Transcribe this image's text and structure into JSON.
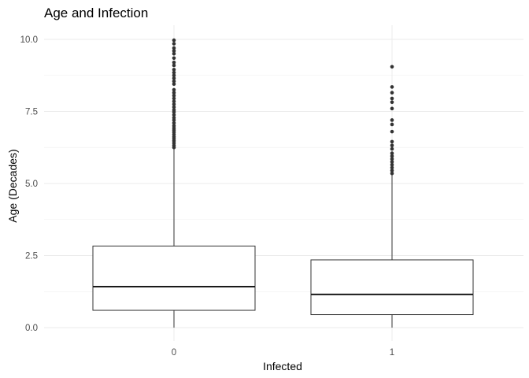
{
  "chart_data": {
    "type": "box",
    "title": "Age and Infection",
    "xlabel": "Infected",
    "ylabel": "Age (Decades)",
    "ylim": [
      -0.05,
      10.2
    ],
    "y_ticks": [
      0.0,
      2.5,
      5.0,
      7.5,
      10.0
    ],
    "y_tick_labels": [
      "0.0",
      "2.5",
      "5.0",
      "7.5",
      "10.0"
    ],
    "grid": true,
    "categories": [
      "0",
      "1"
    ],
    "boxes": [
      {
        "category": "0",
        "whisker_low": 0.0,
        "q1": 0.6,
        "median": 1.42,
        "q3": 2.83,
        "whisker_high": 6.22,
        "outliers": [
          6.25,
          6.32,
          6.4,
          6.48,
          6.55,
          6.62,
          6.7,
          6.78,
          6.85,
          6.92,
          7.0,
          7.1,
          7.2,
          7.28,
          7.38,
          7.48,
          7.55,
          7.65,
          7.75,
          7.85,
          7.95,
          8.05,
          8.15,
          8.25,
          8.45,
          8.55,
          8.65,
          8.75,
          8.85,
          8.95,
          9.1,
          9.2,
          9.35,
          9.5,
          9.6,
          9.7,
          9.85,
          9.97
        ]
      },
      {
        "category": "1",
        "whisker_low": 0.0,
        "q1": 0.45,
        "median": 1.15,
        "q3": 2.35,
        "whisker_high": 5.3,
        "outliers": [
          5.35,
          5.45,
          5.55,
          5.65,
          5.75,
          5.85,
          5.95,
          6.05,
          6.2,
          6.32,
          6.45,
          6.8,
          7.05,
          7.2,
          7.6,
          7.82,
          7.95,
          8.15,
          8.35,
          9.05
        ]
      }
    ]
  }
}
